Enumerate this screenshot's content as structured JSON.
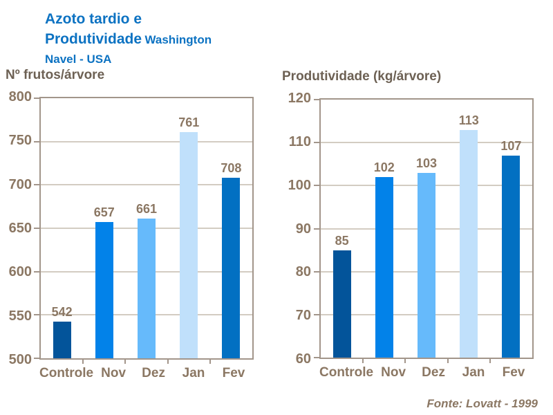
{
  "title": {
    "line1": "Azoto tardio e",
    "line2_main": "Produtividade",
    "line2_small": "Washington",
    "line3": "Navel - USA"
  },
  "footer": {
    "source": "Fonte: Lovatt - 1999"
  },
  "colors": {
    "title_blue": "#0c72c2",
    "axis_title_text": "#6d6154",
    "tick_text": "#8b7763",
    "frame": "#a2958a",
    "gridline": "#d3ccc2",
    "background": "#ffffff",
    "bar_palette": [
      "#03549a",
      "#0282e9",
      "#66bafb",
      "#c0e0fb",
      "#0270c2"
    ]
  },
  "chart_data": [
    {
      "type": "bar",
      "ylabel": "Nº frutos/árvore",
      "categories": [
        "Controle",
        "Nov",
        "Dez",
        "Jan",
        "Fev"
      ],
      "values": [
        542,
        657,
        661,
        761,
        708
      ],
      "ylim": [
        500,
        800
      ],
      "ytick_step": 50,
      "grid": "horizontal",
      "legend": "none",
      "bar_colors": [
        "#03549a",
        "#0282e9",
        "#66bafb",
        "#c0e0fb",
        "#0270c2"
      ]
    },
    {
      "type": "bar",
      "ylabel": "Produtividade (kg/árvore)",
      "categories": [
        "Controle",
        "Nov",
        "Dez",
        "Jan",
        "Fev"
      ],
      "values": [
        85,
        102,
        103,
        113,
        107
      ],
      "ylim": [
        60,
        120
      ],
      "ytick_step": 10,
      "grid": "horizontal",
      "legend": "none",
      "bar_colors": [
        "#03549a",
        "#0282e9",
        "#66bafb",
        "#c0e0fb",
        "#0270c2"
      ]
    }
  ]
}
